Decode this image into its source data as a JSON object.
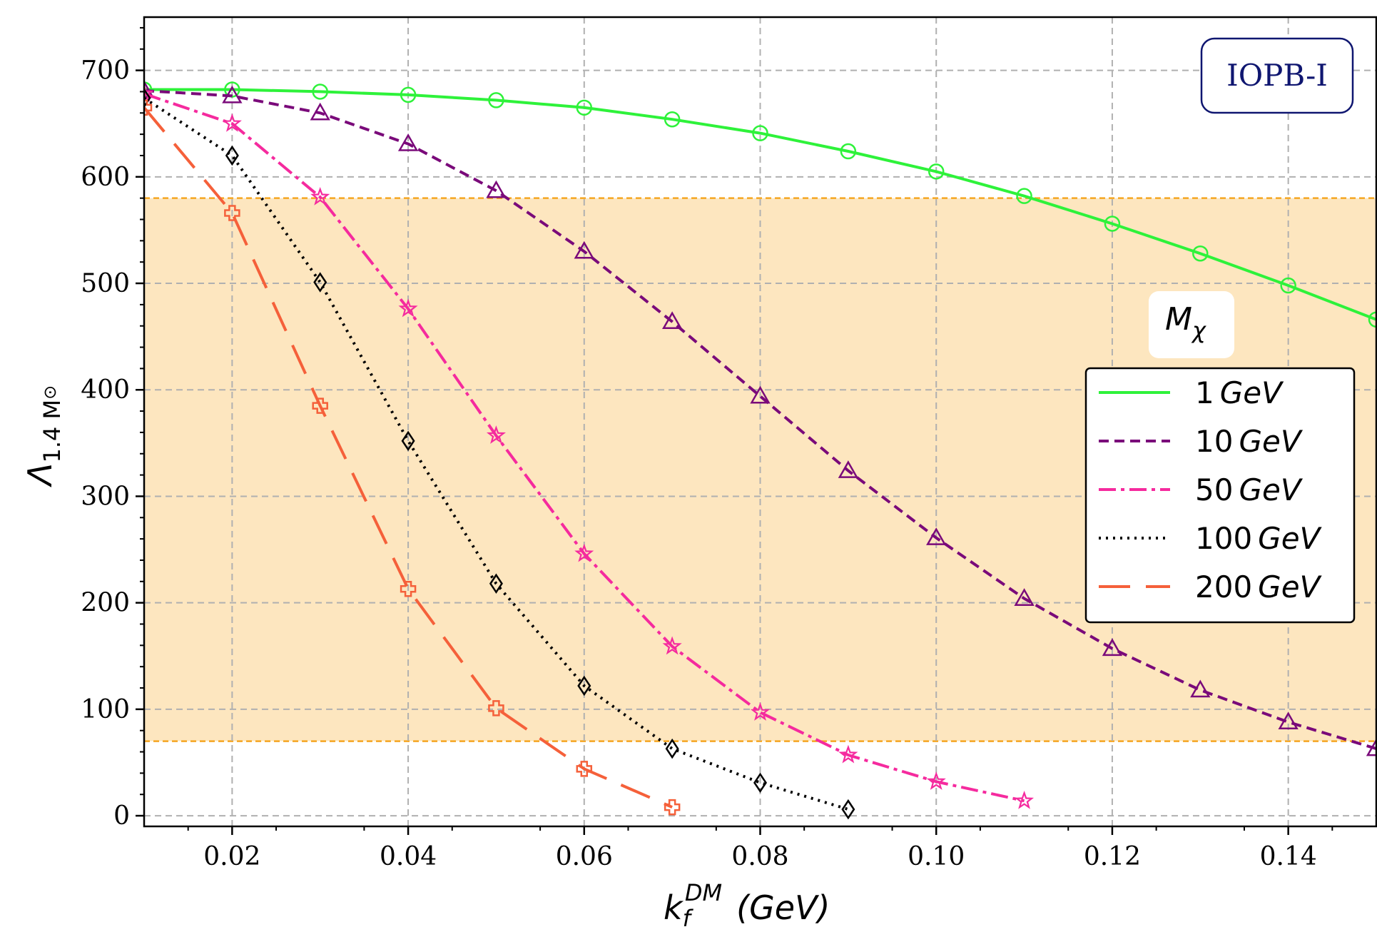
{
  "chart_data": {
    "type": "line",
    "xlabel": "k_f^{DM} (GeV)",
    "xlabel_parts": {
      "base": "k",
      "sub": "f",
      "sup": "DM",
      "unit": "(GeV)"
    },
    "ylabel": "Λ_{1.4 M⊙}",
    "ylabel_parts": {
      "base": "Λ",
      "sub": "1.4 M",
      "sub2": "⊙"
    },
    "xlim": [
      0.01,
      0.15
    ],
    "ylim": [
      -10,
      750
    ],
    "x_ticks": [
      0.02,
      0.04,
      0.06,
      0.08,
      0.1,
      0.12,
      0.14
    ],
    "x_tick_labels": [
      "0.02",
      "0.04",
      "0.06",
      "0.08",
      "0.10",
      "0.12",
      "0.14"
    ],
    "y_ticks": [
      0,
      100,
      200,
      300,
      400,
      500,
      600,
      700
    ],
    "y_tick_labels": [
      "0",
      "100",
      "200",
      "300",
      "400",
      "500",
      "600",
      "700"
    ],
    "grid": true,
    "band": {
      "y0": 70,
      "y1": 580,
      "color": "#fde6bf",
      "edge_color": "#f5a623"
    },
    "annotation": "IOPB-I",
    "legend_title": "M_χ",
    "legend_title_parts": {
      "base": "M",
      "sub": "χ"
    },
    "legend_position": "center-right",
    "series": [
      {
        "name": "1 GeV",
        "name_parts": {
          "num": "1",
          "unit": "GeV"
        },
        "color": "#2ef23a",
        "dash": "solid",
        "marker": "circle",
        "x": [
          0.01,
          0.02,
          0.03,
          0.04,
          0.05,
          0.06,
          0.07,
          0.08,
          0.09,
          0.1,
          0.11,
          0.12,
          0.13,
          0.14,
          0.15
        ],
        "y": [
          682,
          682,
          680,
          677,
          672,
          665,
          654,
          641,
          624,
          605,
          582,
          556,
          528,
          498,
          466
        ]
      },
      {
        "name": "10 GeV",
        "name_parts": {
          "num": "10",
          "unit": "GeV"
        },
        "color": "#7a0a7a",
        "dash": "dashed",
        "marker": "triangle",
        "x": [
          0.01,
          0.02,
          0.03,
          0.04,
          0.05,
          0.06,
          0.07,
          0.08,
          0.09,
          0.1,
          0.11,
          0.12,
          0.13,
          0.14,
          0.15
        ],
        "y": [
          681,
          676,
          660,
          631,
          587,
          530,
          464,
          394,
          324,
          261,
          204,
          157,
          118,
          88,
          63
        ]
      },
      {
        "name": "50 GeV",
        "name_parts": {
          "num": "50",
          "unit": "GeV"
        },
        "color": "#f52a9e",
        "dash": "dashdot",
        "marker": "star",
        "x": [
          0.01,
          0.02,
          0.03,
          0.04,
          0.05,
          0.06,
          0.07,
          0.08,
          0.09,
          0.1,
          0.11
        ],
        "y": [
          678,
          650,
          581,
          476,
          357,
          246,
          159,
          97,
          57,
          32,
          14
        ]
      },
      {
        "name": "100 GeV",
        "name_parts": {
          "num": "100",
          "unit": "GeV"
        },
        "color": "#000000",
        "dash": "dotted",
        "marker": "diamond",
        "x": [
          0.01,
          0.02,
          0.03,
          0.04,
          0.05,
          0.06,
          0.07,
          0.08,
          0.09
        ],
        "y": [
          674,
          620,
          501,
          352,
          218,
          122,
          63,
          31,
          6
        ]
      },
      {
        "name": "200 GeV",
        "name_parts": {
          "num": "200",
          "unit": "GeV"
        },
        "color": "#f5603a",
        "dash": "longdash",
        "marker": "plus",
        "x": [
          0.01,
          0.02,
          0.03,
          0.04,
          0.05,
          0.06,
          0.07
        ],
        "y": [
          665,
          566,
          385,
          213,
          101,
          44,
          8
        ]
      }
    ]
  }
}
